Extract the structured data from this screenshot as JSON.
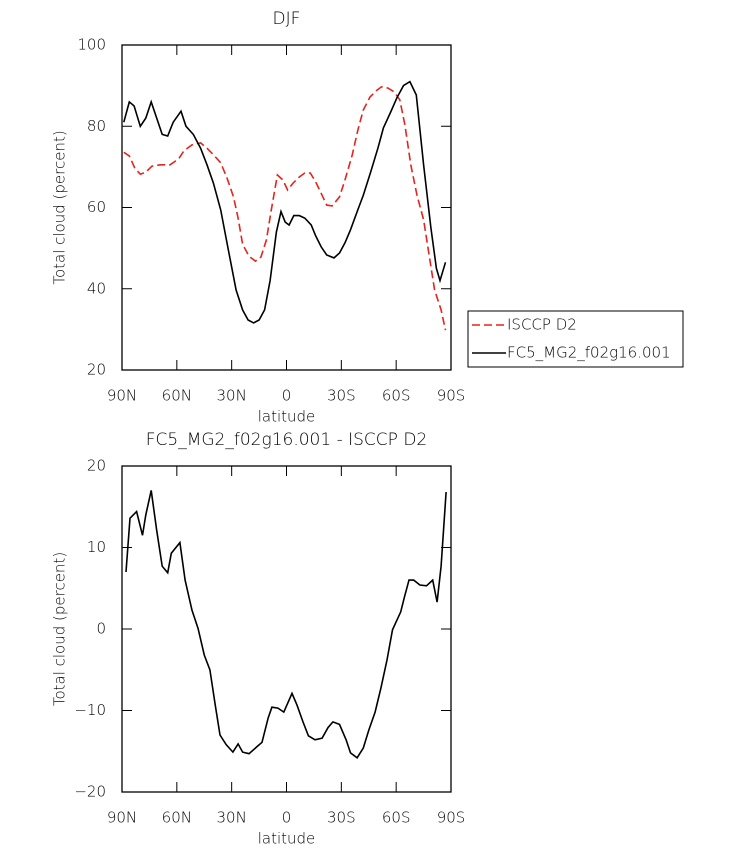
{
  "chart_data": [
    {
      "type": "line",
      "title": "DJF",
      "xlabel": "latitude",
      "ylabel": "Total cloud (percent)",
      "xlim": [
        90,
        -90
      ],
      "ylim": [
        20,
        100
      ],
      "xticks": [
        {
          "value": 90,
          "label": "90N"
        },
        {
          "value": 60,
          "label": "60N"
        },
        {
          "value": 30,
          "label": "30N"
        },
        0,
        {
          "value": -30,
          "label": "30S"
        },
        {
          "value": -60,
          "label": "60S"
        },
        {
          "value": -90,
          "label": "90S"
        }
      ],
      "yticks": [
        20,
        40,
        60,
        80,
        100
      ],
      "legend": "right",
      "series": [
        {
          "name": "ISCCP D2",
          "color": "#e8221c",
          "linestyle": "dashed",
          "x": [
            89,
            86,
            83,
            80,
            77,
            73.6,
            69,
            63.7,
            59,
            56,
            51.7,
            47,
            43.5,
            40,
            36,
            32.5,
            29,
            26.5,
            24,
            20.5,
            17,
            14,
            11,
            8.5,
            5,
            2,
            -0.6,
            -3.6,
            -7,
            -10,
            -13,
            -16,
            -19.5,
            -22,
            -25,
            -29,
            -32,
            -36,
            -39,
            -42,
            -45.7,
            -49,
            -52,
            -55.6,
            -59,
            -62,
            -64.8,
            -68,
            -71.4,
            -75,
            -78,
            -81,
            -84.6,
            -87
          ],
          "values": [
            73.6,
            72.7,
            69.7,
            68.2,
            68.7,
            70.2,
            70.5,
            70.5,
            72,
            74,
            75.4,
            75.9,
            74.6,
            73,
            71,
            67.2,
            62.6,
            57.4,
            51,
            48,
            46.8,
            47.8,
            52,
            59,
            68,
            66.8,
            64.3,
            66,
            67.5,
            68.5,
            68.5,
            66.3,
            63,
            60.6,
            60.4,
            62.6,
            66.8,
            73,
            79,
            84,
            87.2,
            88.7,
            89.7,
            89.4,
            88.4,
            86.5,
            80.3,
            70.5,
            63,
            57,
            48.3,
            39.7,
            34.8,
            29.8
          ]
        },
        {
          "name": "FC5_MG2_f02g16.001",
          "color": "#000000",
          "linestyle": "solid",
          "x": [
            89,
            86,
            83.4,
            80,
            77,
            74,
            71,
            68,
            65,
            62,
            57.7,
            55,
            51,
            47,
            43.5,
            40,
            36,
            32,
            27.6,
            24,
            21,
            18,
            15,
            12,
            9,
            5.5,
            3,
            0.7,
            -1.4,
            -4,
            -7,
            -10,
            -13.5,
            -16,
            -19,
            -22,
            -26,
            -29,
            -32,
            -35,
            -39,
            -42,
            -46,
            -50,
            -53,
            -57,
            -60.4,
            -64,
            -67.5,
            -71,
            -75,
            -79,
            -82,
            -84,
            -87
          ],
          "values": [
            81,
            86,
            85,
            80,
            82,
            86,
            82,
            78,
            77.6,
            81,
            83.7,
            80,
            78,
            74.6,
            70.5,
            66,
            59.4,
            50,
            39.7,
            34.8,
            32.3,
            31.6,
            32.3,
            34.8,
            42,
            54,
            59,
            56.4,
            55.7,
            58,
            58,
            57.4,
            55.7,
            53,
            50.3,
            48.3,
            47.6,
            48.8,
            51.3,
            54.5,
            59.4,
            63,
            68.7,
            74.6,
            79.6,
            83.5,
            87,
            90,
            91,
            87.7,
            70.5,
            55,
            45,
            42,
            46.5
          ]
        }
      ]
    },
    {
      "type": "line",
      "title": "FC5_MG2_f02g16.001 - ISCCP D2",
      "xlabel": "latitude",
      "ylabel": "Total cloud (percent)",
      "xlim": [
        90,
        -90
      ],
      "ylim": [
        -20,
        20
      ],
      "xticks": [
        {
          "value": 90,
          "label": "90N"
        },
        {
          "value": 60,
          "label": "60N"
        },
        {
          "value": 30,
          "label": "30N"
        },
        0,
        {
          "value": -30,
          "label": "30S"
        },
        {
          "value": -60,
          "label": "60S"
        },
        {
          "value": -90,
          "label": "90S"
        }
      ],
      "yticks": [
        {
          "value": -20,
          "label": "−20"
        },
        {
          "value": -10,
          "label": "−10"
        },
        0,
        10,
        20
      ],
      "series": [
        {
          "color": "#000000",
          "linestyle": "solid",
          "x": [
            87.8,
            85.6,
            82,
            78.8,
            77,
            74,
            71,
            68,
            65,
            63,
            58.3,
            55.5,
            51.7,
            48.4,
            45,
            41.9,
            39,
            36.4,
            33,
            29.3,
            26.5,
            24,
            20.5,
            16,
            13.4,
            10,
            8,
            4.7,
            1.5,
            -3,
            -5.7,
            -9,
            -12,
            -15.6,
            -19.5,
            -22.7,
            -25.4,
            -29,
            -32.6,
            -35,
            -38.6,
            -42,
            -45,
            -48.5,
            -51.7,
            -55,
            -58,
            -62.5,
            -64.5,
            -67,
            -69.6,
            -73,
            -76.6,
            -80,
            -82.4,
            -84.6,
            -87.3
          ],
          "values": [
            7,
            13.6,
            14.4,
            11.5,
            14,
            17,
            12.1,
            7.7,
            6.9,
            9.3,
            10.6,
            6,
            2.3,
            0.1,
            -3.2,
            -5,
            -9.3,
            -13,
            -14.2,
            -15.1,
            -14.1,
            -15.1,
            -15.3,
            -14.4,
            -13.9,
            -10.9,
            -9.6,
            -9.7,
            -10.2,
            -7.9,
            -9.3,
            -11.4,
            -13.1,
            -13.6,
            -13.4,
            -12.1,
            -11.4,
            -11.7,
            -13.6,
            -15.2,
            -15.8,
            -14.6,
            -12.4,
            -10.2,
            -7.2,
            -3.8,
            -0.1,
            2.1,
            3.9,
            6,
            6,
            5.4,
            5.3,
            6,
            3.3,
            7.7,
            16.8
          ]
        }
      ]
    }
  ]
}
